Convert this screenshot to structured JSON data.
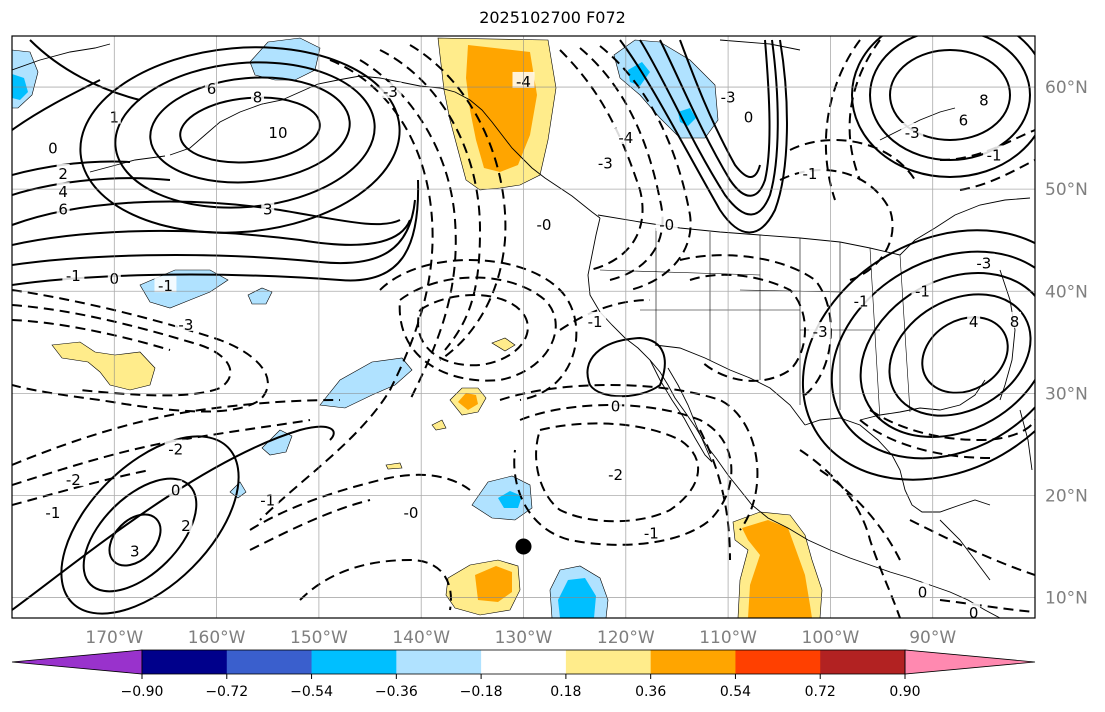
{
  "title": "2025102700 F072",
  "map": {
    "lon_range": [
      -180,
      -80
    ],
    "lat_range": [
      8,
      65
    ],
    "lon_labels": [
      "170°W",
      "160°W",
      "150°W",
      "140°W",
      "130°W",
      "120°W",
      "110°W",
      "100°W",
      "90°W"
    ],
    "lat_labels": [
      "60°N",
      "50°N",
      "40°N",
      "30°N",
      "20°N",
      "10°N"
    ],
    "grid": true,
    "marker": {
      "lon": -130.0,
      "lat": 15.0
    },
    "contour_labels": [
      {
        "text": "0",
        "lon": -176,
        "lat": 54
      },
      {
        "text": "1",
        "lon": -170,
        "lat": 57
      },
      {
        "text": "2",
        "lon": -175,
        "lat": 51.5
      },
      {
        "text": "4",
        "lon": -175,
        "lat": 49.7
      },
      {
        "text": "6",
        "lon": -175,
        "lat": 48
      },
      {
        "text": "6",
        "lon": -160.5,
        "lat": 59.8
      },
      {
        "text": "8",
        "lon": -156,
        "lat": 59
      },
      {
        "text": "10",
        "lon": -154,
        "lat": 55.5
      },
      {
        "text": "3",
        "lon": -155,
        "lat": 48
      },
      {
        "text": "-3",
        "lon": -143,
        "lat": 59.5
      },
      {
        "text": "-4",
        "lon": -130,
        "lat": 60.5
      },
      {
        "text": "-1",
        "lon": -174,
        "lat": 41.5
      },
      {
        "text": "0",
        "lon": -170,
        "lat": 41.2
      },
      {
        "text": "-1",
        "lon": -165,
        "lat": 40.5
      },
      {
        "text": "-3",
        "lon": -163,
        "lat": 36.7
      },
      {
        "text": "-2",
        "lon": -164,
        "lat": 24.5
      },
      {
        "text": "-2",
        "lon": -174,
        "lat": 21.5
      },
      {
        "text": "-1",
        "lon": -176,
        "lat": 18.3
      },
      {
        "text": "0",
        "lon": -164,
        "lat": 20.5
      },
      {
        "text": "2",
        "lon": -163,
        "lat": 17
      },
      {
        "text": "3",
        "lon": -168,
        "lat": 14.5
      },
      {
        "text": "-1",
        "lon": -155,
        "lat": 19.5
      },
      {
        "text": "-0",
        "lon": -141,
        "lat": 18.3
      },
      {
        "text": "-0",
        "lon": -128,
        "lat": 46.5
      },
      {
        "text": "-1",
        "lon": -123,
        "lat": 37
      },
      {
        "text": "0",
        "lon": -121,
        "lat": 28.7
      },
      {
        "text": "-2",
        "lon": -121,
        "lat": 22
      },
      {
        "text": "-1",
        "lon": -117.5,
        "lat": 16.3
      },
      {
        "text": "-3",
        "lon": -101,
        "lat": 36
      },
      {
        "text": "-1",
        "lon": -97,
        "lat": 39
      },
      {
        "text": "-3",
        "lon": -110,
        "lat": 59
      },
      {
        "text": "0",
        "lon": -108,
        "lat": 57
      },
      {
        "text": "-4",
        "lon": -120,
        "lat": 55
      },
      {
        "text": "-3",
        "lon": -122,
        "lat": 52.5
      },
      {
        "text": "-1",
        "lon": -102,
        "lat": 51.5
      },
      {
        "text": "-0",
        "lon": -116,
        "lat": 46.5
      },
      {
        "text": "8",
        "lon": -85,
        "lat": 58.7
      },
      {
        "text": "6",
        "lon": -87,
        "lat": 56.7
      },
      {
        "text": "-3",
        "lon": -92,
        "lat": 55.5
      },
      {
        "text": "-1",
        "lon": -84,
        "lat": 53.3
      },
      {
        "text": "4",
        "lon": -86,
        "lat": 37
      },
      {
        "text": "8",
        "lon": -82,
        "lat": 37
      },
      {
        "text": "-3",
        "lon": -85,
        "lat": 42.7
      },
      {
        "text": "-1",
        "lon": -91,
        "lat": 40
      },
      {
        "text": "0",
        "lon": -91,
        "lat": 10.5
      },
      {
        "text": "0",
        "lon": -86,
        "lat": 8.5
      }
    ]
  },
  "colorbar": {
    "colors": [
      "#9932cc",
      "#00008b",
      "#3a5fcd",
      "#00bfff",
      "#b0e2ff",
      "#ffffff",
      "#ffec8b",
      "#ffa500",
      "#ff4000",
      "#b22222",
      "#ff89b0"
    ],
    "tick_labels": [
      "−0.90",
      "−0.72",
      "−0.54",
      "−0.36",
      "−0.18",
      "0.18",
      "0.36",
      "0.54",
      "0.72",
      "0.90"
    ]
  }
}
